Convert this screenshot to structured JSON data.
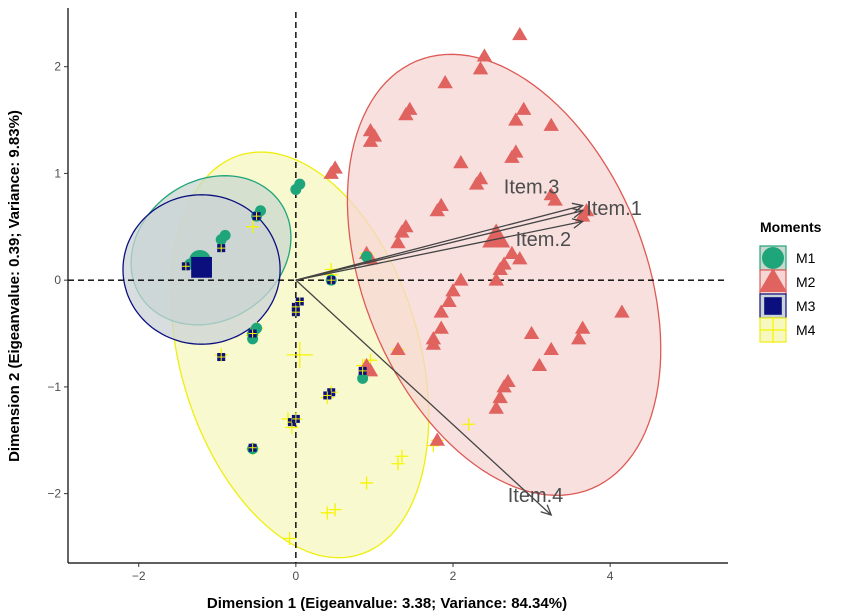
{
  "chart_data": {
    "type": "scatter",
    "title": "",
    "xlabel": "Dimension 1 (Eigeanvalue: 3.38; Variance: 84.34%)",
    "ylabel": "Dimension 2 (Eigeanvalue: 0.39; Variance: 9.83%)",
    "xlim": [
      -2.9,
      5.5
    ],
    "ylim": [
      -2.65,
      2.55
    ],
    "x_ticks": [
      -2,
      0,
      2,
      4
    ],
    "y_ticks": [
      -2,
      -1,
      0,
      1,
      2
    ],
    "x_tick_labels": [
      "−2",
      "0",
      "2",
      "4"
    ],
    "y_tick_labels": [
      "−2",
      "−1",
      "0",
      "1",
      "2"
    ],
    "grid": false,
    "reference_lines": {
      "x": 0,
      "y": 0,
      "style": "dashed"
    },
    "legend": {
      "title": "Moments",
      "placement": "right"
    },
    "series": [
      {
        "name": "M1",
        "shape": "circle",
        "color": "#1fa57a",
        "points": [
          [
            0.05,
            0.9
          ],
          [
            0.0,
            0.85
          ],
          [
            -0.45,
            0.65
          ],
          [
            -0.5,
            0.6
          ],
          [
            -0.9,
            0.42
          ],
          [
            -0.95,
            0.38
          ],
          [
            -1.35,
            0.15
          ],
          [
            -1.2,
            0.2
          ],
          [
            0.45,
            0.0
          ],
          [
            0.9,
            0.22
          ],
          [
            -0.5,
            -0.45
          ],
          [
            -0.55,
            -0.5
          ],
          [
            0.85,
            -0.92
          ],
          [
            -0.55,
            -1.58
          ],
          [
            -0.55,
            -0.55
          ]
        ]
      },
      {
        "name": "M2",
        "shape": "triangle",
        "color": "#e0635f",
        "points": [
          [
            2.85,
            2.3
          ],
          [
            2.4,
            2.1
          ],
          [
            2.35,
            1.98
          ],
          [
            1.9,
            1.85
          ],
          [
            1.4,
            1.55
          ],
          [
            1.45,
            1.6
          ],
          [
            0.95,
            1.4
          ],
          [
            1.0,
            1.35
          ],
          [
            0.95,
            1.3
          ],
          [
            0.5,
            1.05
          ],
          [
            0.45,
            1.0
          ],
          [
            3.25,
            1.45
          ],
          [
            2.8,
            1.5
          ],
          [
            2.9,
            1.6
          ],
          [
            2.8,
            1.2
          ],
          [
            2.75,
            1.15
          ],
          [
            2.1,
            1.1
          ],
          [
            2.35,
            0.95
          ],
          [
            2.3,
            0.9
          ],
          [
            3.7,
            0.65
          ],
          [
            3.65,
            0.6
          ],
          [
            3.25,
            0.8
          ],
          [
            3.3,
            0.75
          ],
          [
            1.85,
            0.7
          ],
          [
            1.8,
            0.65
          ],
          [
            1.4,
            0.5
          ],
          [
            1.35,
            0.45
          ],
          [
            1.3,
            0.35
          ],
          [
            0.9,
            0.25
          ],
          [
            0.95,
            0.2
          ],
          [
            2.85,
            0.2
          ],
          [
            2.75,
            0.25
          ],
          [
            2.65,
            0.15
          ],
          [
            2.6,
            0.1
          ],
          [
            2.55,
            0.0
          ],
          [
            2.1,
            0.0
          ],
          [
            2.0,
            -0.1
          ],
          [
            1.95,
            -0.2
          ],
          [
            1.85,
            -0.3
          ],
          [
            4.15,
            -0.3
          ],
          [
            3.65,
            -0.45
          ],
          [
            3.6,
            -0.55
          ],
          [
            3.0,
            -0.5
          ],
          [
            1.85,
            -0.45
          ],
          [
            1.75,
            -0.55
          ],
          [
            1.75,
            -0.6
          ],
          [
            3.25,
            -0.65
          ],
          [
            3.1,
            -0.8
          ],
          [
            2.7,
            -0.95
          ],
          [
            2.65,
            -1.0
          ],
          [
            2.6,
            -1.1
          ],
          [
            2.55,
            -1.2
          ],
          [
            1.8,
            -1.5
          ],
          [
            1.3,
            -0.65
          ],
          [
            0.95,
            -0.85
          ],
          [
            0.9,
            -0.8
          ]
        ]
      },
      {
        "name": "M3",
        "shape": "square",
        "color": "#0b0f7e",
        "points": [
          [
            -1.25,
            0.12
          ],
          [
            -1.15,
            0.1
          ],
          [
            -1.4,
            0.13
          ],
          [
            -0.95,
            0.3
          ],
          [
            0.0,
            -0.25
          ],
          [
            0.0,
            -0.3
          ],
          [
            0.05,
            -0.2
          ],
          [
            0.45,
            0.0
          ],
          [
            -0.95,
            -0.72
          ],
          [
            0.45,
            -1.05
          ],
          [
            0.4,
            -1.08
          ],
          [
            -0.05,
            -1.33
          ],
          [
            -0.55,
            -1.57
          ],
          [
            0.0,
            -1.3
          ],
          [
            0.85,
            -0.85
          ],
          [
            -0.55,
            -0.5
          ],
          [
            -0.5,
            0.6
          ]
        ]
      },
      {
        "name": "M4",
        "shape": "cross",
        "color": "#f5f500",
        "points": [
          [
            -0.55,
            0.5
          ],
          [
            0.45,
            0.05
          ],
          [
            0.45,
            0.1
          ],
          [
            0.9,
            0.25
          ],
          [
            -0.5,
            -0.45
          ],
          [
            -0.55,
            -0.52
          ],
          [
            -0.95,
            -0.7
          ],
          [
            0.85,
            -0.8
          ],
          [
            0.95,
            -0.75
          ],
          [
            0.45,
            -1.05
          ],
          [
            0.4,
            -1.1
          ],
          [
            1.3,
            -0.65
          ],
          [
            1.3,
            -1.72
          ],
          [
            1.35,
            -1.65
          ],
          [
            2.2,
            -1.35
          ],
          [
            1.75,
            -1.55
          ],
          [
            1.8,
            -1.5
          ],
          [
            -0.05,
            -1.38
          ],
          [
            -0.1,
            -1.3
          ],
          [
            0.0,
            -1.3
          ],
          [
            -0.55,
            -1.58
          ],
          [
            0.5,
            -2.15
          ],
          [
            0.4,
            -2.18
          ],
          [
            0.9,
            -1.9
          ],
          [
            -0.08,
            -2.42
          ],
          [
            -0.55,
            -0.5
          ]
        ]
      }
    ],
    "centroids": [
      {
        "series": "M1",
        "shape": "circle",
        "color": "#1fa57a",
        "x": -1.22,
        "y": 0.18
      },
      {
        "series": "M2",
        "shape": "triangle",
        "color": "#e0635f",
        "x": 2.55,
        "y": 0.4
      },
      {
        "series": "M3",
        "shape": "square",
        "color": "#0b0f7e",
        "x": -1.2,
        "y": 0.12
      },
      {
        "series": "M4",
        "shape": "cross",
        "color": "#f5f500",
        "x": 0.05,
        "y": -0.7
      }
    ],
    "ellipses": [
      {
        "series": "M4",
        "cx": 0.05,
        "cy": -0.7,
        "rx": 2.05,
        "ry": 1.45,
        "angle_deg": -58,
        "stroke": "#eeee10",
        "fill": "#f7f7c0"
      },
      {
        "series": "M2",
        "cx": 2.65,
        "cy": 0.05,
        "rx": 2.35,
        "ry": 1.65,
        "angle_deg": -48,
        "stroke": "#dd5a55",
        "fill": "#f6d6d4"
      },
      {
        "series": "M1",
        "cx": -1.08,
        "cy": 0.28,
        "rx": 1.03,
        "ry": 0.68,
        "angle_deg": 12,
        "stroke": "#1fa57a",
        "fill": "#c9d7cf"
      },
      {
        "series": "M3",
        "cx": -1.2,
        "cy": 0.1,
        "rx": 1.0,
        "ry": 0.7,
        "angle_deg": 0,
        "stroke": "#0b0f7e",
        "fill": "#cbd3d6"
      }
    ],
    "loadings": [
      {
        "name": "Item.1",
        "x": 3.65,
        "y": 0.65,
        "label_x": 4.05,
        "label_y": 0.66
      },
      {
        "name": "Item.2",
        "x": 3.65,
        "y": 0.55,
        "label_x": 3.15,
        "label_y": 0.37
      },
      {
        "name": "Item.3",
        "x": 3.65,
        "y": 0.7,
        "label_x": 3.0,
        "label_y": 0.86
      },
      {
        "name": "Item.4",
        "x": 3.25,
        "y": -2.2,
        "label_x": 3.05,
        "label_y": -2.03
      }
    ]
  }
}
